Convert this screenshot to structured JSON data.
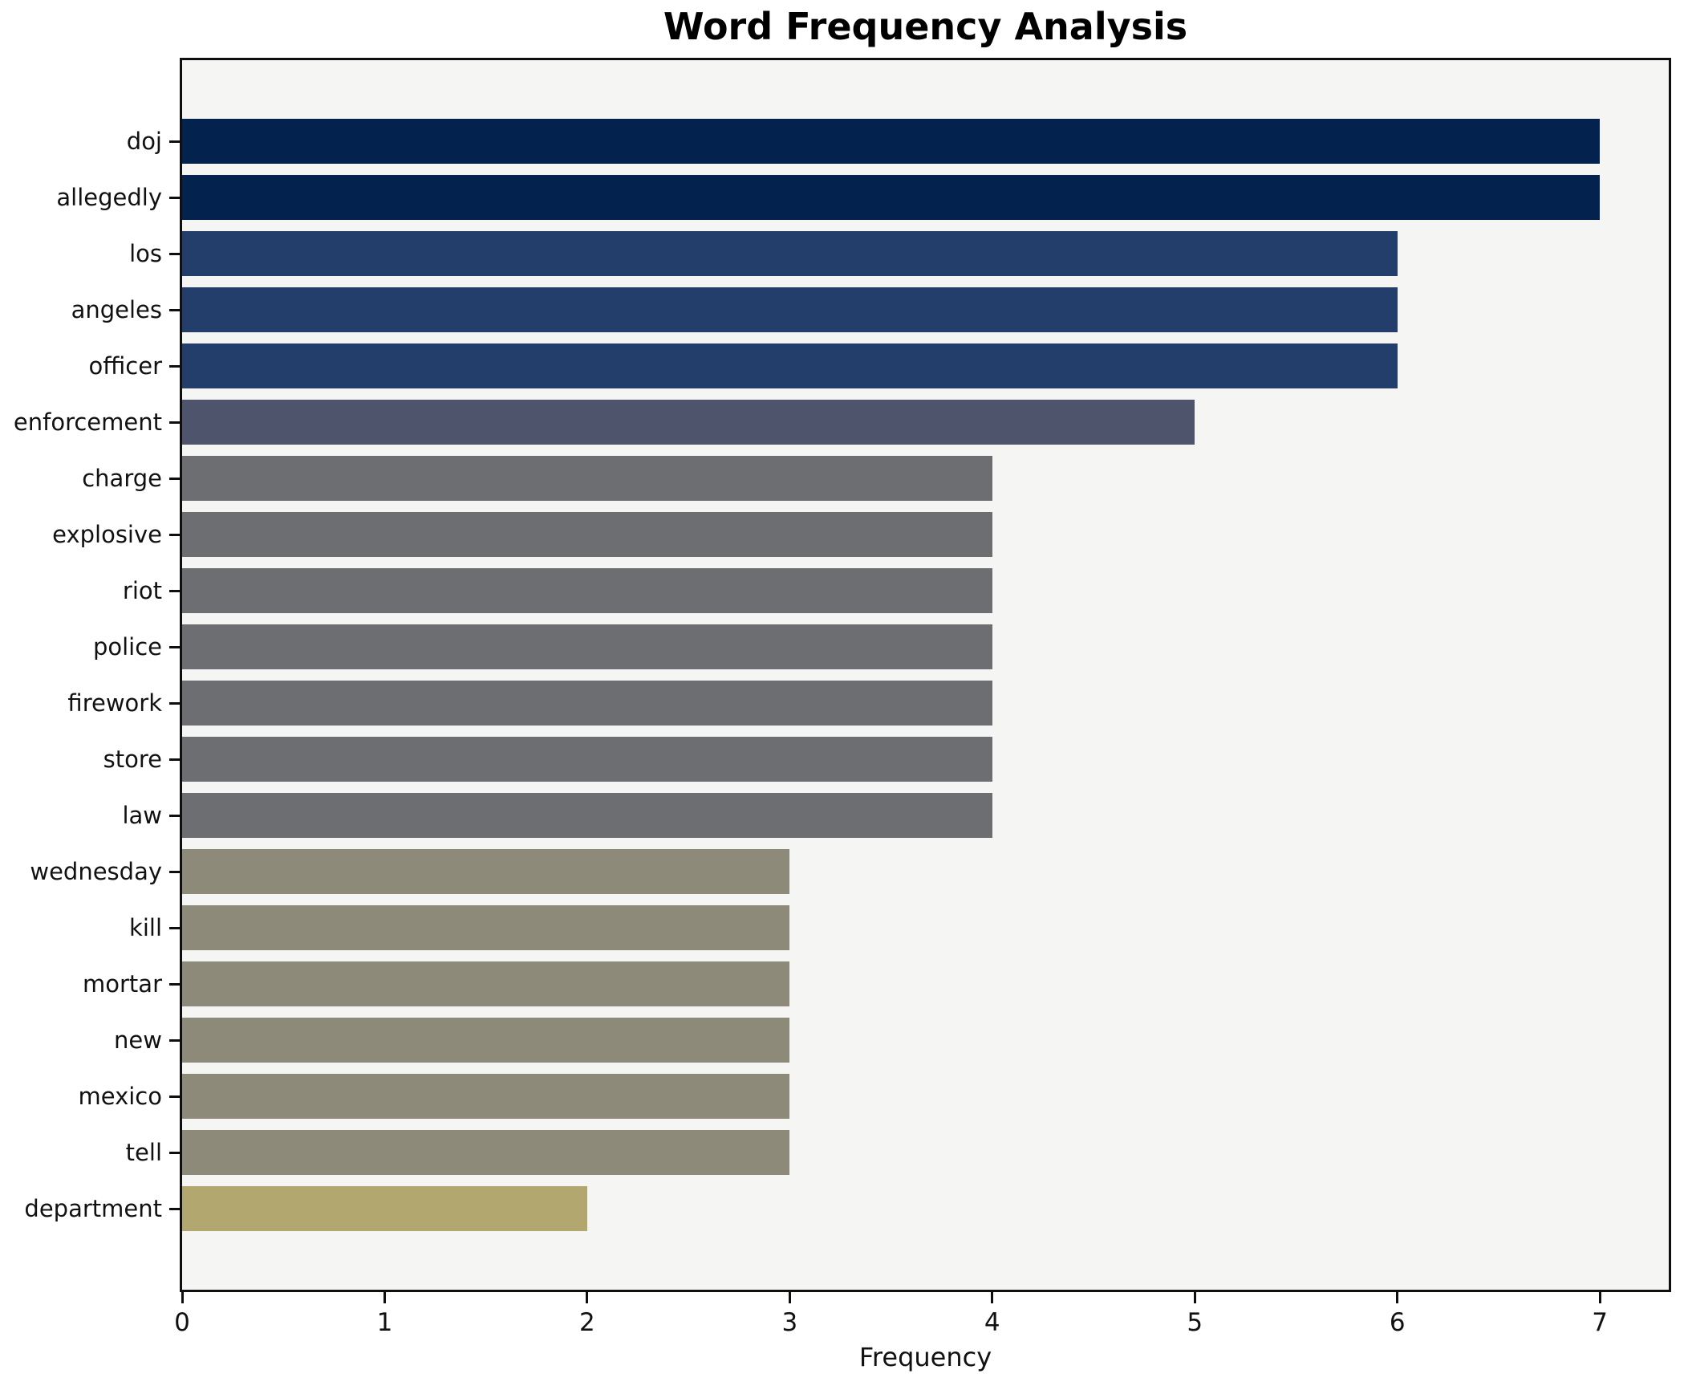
{
  "figure": {
    "background": "#ffffff"
  },
  "chart_data": {
    "type": "bar",
    "orientation": "horizontal",
    "title": "Word Frequency Analysis",
    "xlabel": "Frequency",
    "ylabel": "",
    "categories": [
      "doj",
      "allegedly",
      "los",
      "angeles",
      "officer",
      "enforcement",
      "charge",
      "explosive",
      "riot",
      "police",
      "firework",
      "store",
      "law",
      "wednesday",
      "kill",
      "mortar",
      "new",
      "mexico",
      "tell",
      "department"
    ],
    "values": [
      7,
      7,
      6,
      6,
      6,
      5,
      4,
      4,
      4,
      4,
      4,
      4,
      4,
      3,
      3,
      3,
      3,
      3,
      3,
      2
    ],
    "bar_colors": [
      "#03224e",
      "#03224e",
      "#243e6c",
      "#243e6c",
      "#243e6c",
      "#4e546b",
      "#6c6e71",
      "#6c6e71",
      "#6c6e71",
      "#6c6e71",
      "#6c6e71",
      "#6c6e71",
      "#6c6e71",
      "#8e8a79",
      "#8e8a79",
      "#8e8a79",
      "#8e8a79",
      "#8e8a79",
      "#8e8a79",
      "#b1a76f"
    ],
    "value_color_map": {
      "7": "#03224e",
      "6": "#243e6c",
      "5": "#4e546b",
      "4": "#6c6e71",
      "3": "#8e8a79",
      "2": "#b1a76f"
    },
    "xticks": [
      0,
      1,
      2,
      3,
      4,
      5,
      6,
      7
    ],
    "xlim": [
      0,
      7.34
    ],
    "grid": false,
    "legend": false,
    "plot_background": "#f5f5f4",
    "spine_color": "#0f0f0f"
  }
}
